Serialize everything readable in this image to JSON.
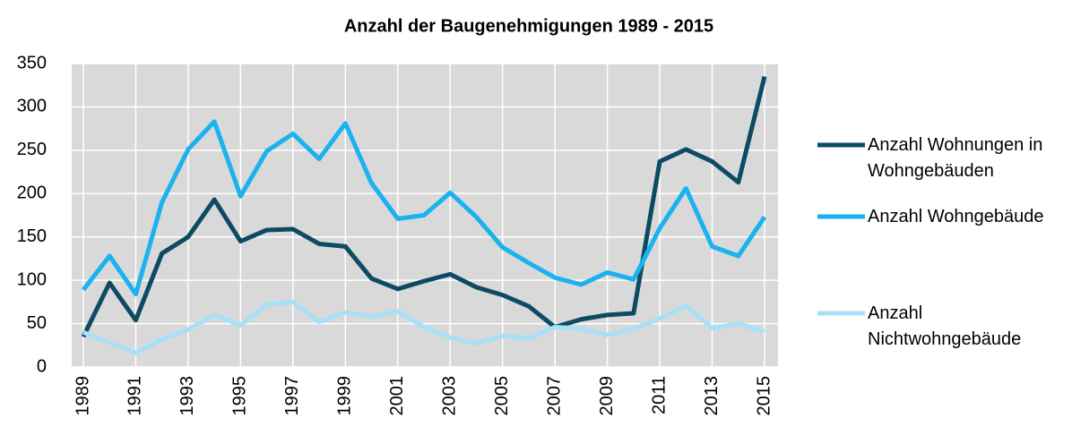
{
  "chart_data": {
    "type": "line",
    "title": "Anzahl der Baugenehmigungen 1989 - 2015",
    "x": [
      1989,
      1990,
      1991,
      1992,
      1993,
      1994,
      1995,
      1996,
      1997,
      1998,
      1999,
      2000,
      2001,
      2002,
      2003,
      2004,
      2005,
      2006,
      2007,
      2008,
      2009,
      2010,
      2011,
      2012,
      2013,
      2014,
      2015
    ],
    "series": [
      {
        "name": "Anzahl Wohnungen in Wohngebäuden",
        "color": "#0d4a63",
        "values": [
          35,
          97,
          54,
          131,
          150,
          193,
          145,
          158,
          159,
          142,
          139,
          102,
          90,
          99,
          107,
          92,
          83,
          70,
          46,
          55,
          60,
          62,
          237,
          251,
          237,
          213,
          335
        ]
      },
      {
        "name": "Anzahl Wohngebäude",
        "color": "#1ab2ef",
        "values": [
          89,
          128,
          84,
          190,
          251,
          283,
          197,
          249,
          269,
          240,
          281,
          212,
          171,
          175,
          201,
          173,
          138,
          120,
          103,
          95,
          109,
          101,
          160,
          206,
          139,
          128,
          173
        ]
      },
      {
        "name": "Anzahl Nichtwohngebäude",
        "color": "#a8e0f7",
        "values": [
          40,
          28,
          16,
          32,
          43,
          60,
          48,
          72,
          75,
          52,
          63,
          58,
          64,
          46,
          34,
          27,
          36,
          33,
          46,
          44,
          37,
          44,
          56,
          71,
          45,
          50,
          41
        ]
      }
    ],
    "xlim": [
      1989,
      2015
    ],
    "xticks": [
      1989,
      1991,
      1993,
      1995,
      1997,
      1999,
      2001,
      2003,
      2005,
      2007,
      2009,
      2011,
      2013,
      2015
    ],
    "ylim": [
      0,
      350
    ],
    "yticks": [
      0,
      50,
      100,
      150,
      200,
      250,
      300,
      350
    ],
    "grid": true,
    "legend": "right"
  }
}
